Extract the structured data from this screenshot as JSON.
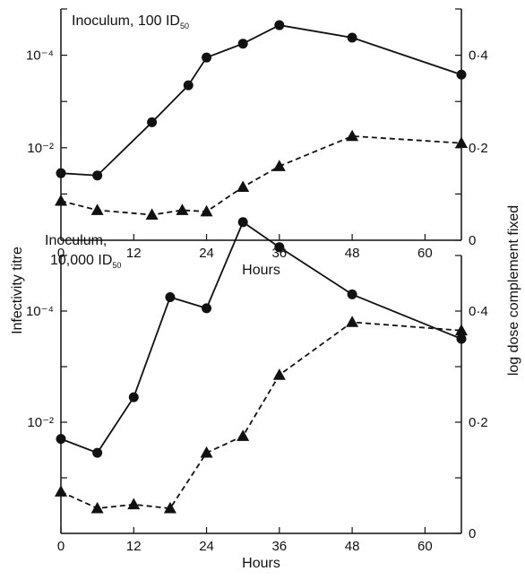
{
  "ylabel_left": "Infectivity titre",
  "ylabel_right": "log dose complement fixed",
  "chart_data": [
    {
      "type": "line",
      "panel": "top",
      "annotation": "Inoculum, 100 ID",
      "annotation_sub": "50",
      "xlabel": "Hours",
      "xlim": [
        0,
        66
      ],
      "xticks": [
        0,
        12,
        24,
        36,
        48,
        60
      ],
      "xtick_labels": [
        "0",
        "12",
        "24",
        "36",
        "48",
        "60"
      ],
      "left_axis": {
        "scale": "log-exponent",
        "ylim": [
          -3.5,
          -5.0
        ],
        "ticks": [
          -2.0,
          -4.0
        ],
        "tick_labels": [
          "10⁻²",
          "10⁻⁴"
        ]
      },
      "right_axis": {
        "ylim": [
          0,
          0.5
        ],
        "ticks": [
          0.2,
          0.4
        ],
        "tick_labels": [
          "0·2",
          "0·4"
        ]
      },
      "grid": false,
      "series": [
        {
          "axis": "left",
          "marker": "circle",
          "style": "solid",
          "x": [
            0,
            6,
            15,
            21,
            24,
            30,
            36,
            48,
            66
          ],
          "y": [
            -1.45,
            -1.4,
            -2.55,
            -3.35,
            -3.95,
            -4.25,
            -4.65,
            -4.38,
            -3.58
          ]
        },
        {
          "axis": "right",
          "marker": "triangle",
          "style": "dashed",
          "x": [
            0,
            6,
            15,
            20,
            24,
            30,
            36,
            48,
            66
          ],
          "y": [
            0.085,
            0.065,
            0.055,
            0.065,
            0.062,
            0.115,
            0.16,
            0.225,
            0.21
          ]
        }
      ]
    },
    {
      "type": "line",
      "panel": "bottom",
      "annotation_lines": [
        "Inoculum,",
        "10,000 ID"
      ],
      "annotation_sub": "50",
      "xlabel": "Hours",
      "xlim": [
        0,
        66
      ],
      "xticks": [
        0,
        12,
        24,
        36,
        48,
        60
      ],
      "xtick_labels": [
        "0",
        "12",
        "24",
        "36",
        "48",
        "60"
      ],
      "left_axis": {
        "scale": "log-exponent",
        "ylim": [
          -3.5,
          -5.0
        ],
        "ticks": [
          -2.0,
          -4.0
        ],
        "tick_labels": [
          "10⁻²",
          "10⁻⁴"
        ]
      },
      "right_axis": {
        "ylim": [
          0,
          0.5
        ],
        "ticks": [
          0.2,
          0.4
        ],
        "tick_labels": [
          "0·2",
          "0·4"
        ]
      },
      "grid": false,
      "series": [
        {
          "axis": "left",
          "marker": "circle",
          "style": "solid",
          "x": [
            0,
            6,
            12,
            18,
            24,
            30,
            36,
            48,
            66
          ],
          "y": [
            -1.7,
            -1.45,
            -2.45,
            -4.25,
            -4.05,
            -5.6,
            -5.15,
            -4.3,
            -3.5
          ]
        },
        {
          "axis": "right",
          "marker": "triangle",
          "style": "dashed",
          "x": [
            0,
            6,
            12,
            18,
            24,
            30,
            36,
            48,
            66
          ],
          "y": [
            0.075,
            0.045,
            0.052,
            0.045,
            0.145,
            0.175,
            0.285,
            0.38,
            0.365
          ]
        }
      ]
    }
  ]
}
